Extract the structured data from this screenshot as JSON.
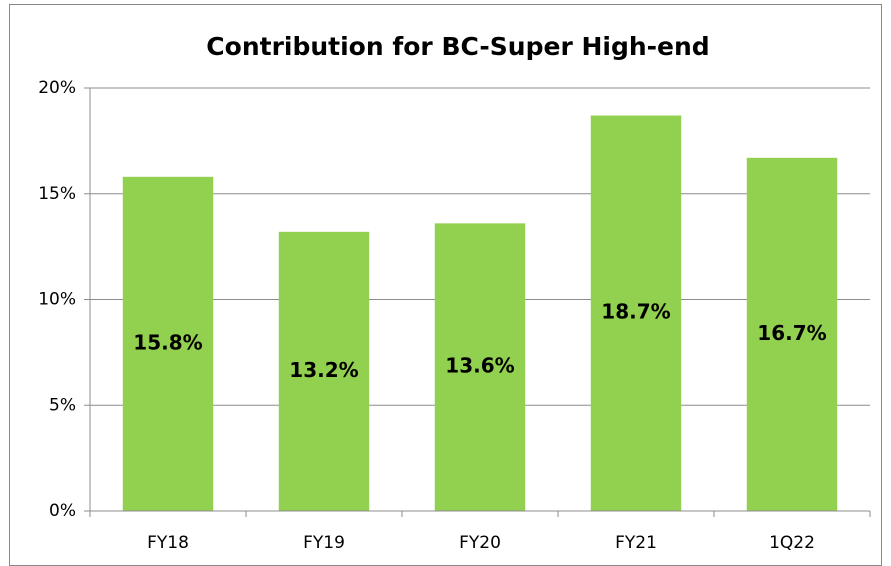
{
  "chart_data": {
    "type": "bar",
    "title": "Contribution for BC-Super High-end",
    "categories": [
      "FY18",
      "FY19",
      "FY20",
      "FY21",
      "1Q22"
    ],
    "values": [
      15.8,
      13.2,
      13.6,
      18.7,
      16.7
    ],
    "value_labels": [
      "15.8%",
      "13.2%",
      "13.6%",
      "18.7%",
      "16.7%"
    ],
    "color": "#92d050",
    "ylim": [
      0,
      20
    ],
    "yticks": [
      {
        "value": 0,
        "label": "0%"
      },
      {
        "value": 5,
        "label": "5%"
      },
      {
        "value": 10,
        "label": "10%"
      },
      {
        "value": 15,
        "label": "15%"
      },
      {
        "value": 20,
        "label": "20%"
      }
    ],
    "grid": true
  }
}
